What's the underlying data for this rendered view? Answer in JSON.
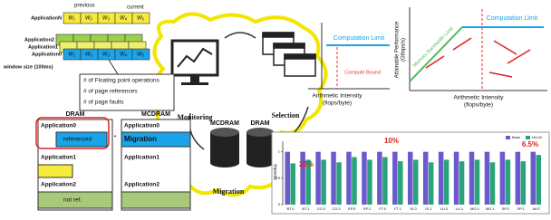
{
  "windows": {
    "previous": "previous",
    "current": "current",
    "apps": [
      "ApplicationN",
      "Application2",
      "Application1",
      "Application0"
    ],
    "labels": [
      "W₁",
      "W₂",
      "W₃",
      "W₄",
      "W₅"
    ],
    "window_size": "window size (100ms)"
  },
  "metrics": [
    "# of Floating point operations",
    "# of page references",
    "# of page faults"
  ],
  "stages": {
    "monitoring": "Monitoring",
    "selection": "Selection",
    "migration": "Migration"
  },
  "roofline_left": {
    "limit": "Computation Limit",
    "bound": "Compute Bound",
    "x_label": "Arithmetic Intensity",
    "x_unit": "(flops/byte)"
  },
  "roofline_right": {
    "limit": "Computation Limit",
    "memory_limit": "Memory Bandwidth Limit",
    "y_label": "Attainable Performance",
    "y_unit": "(Gflops/s)",
    "x_label": "Arithmetic Intensity",
    "x_unit": "(flops/byte)"
  },
  "memory": {
    "dram": "DRAM",
    "mcdram": "MCDRAM",
    "dram_rows": [
      "Application0",
      "referenced",
      "Application1",
      "Application2",
      "not ref."
    ],
    "mcdram_rows": [
      "Application0",
      "Migration",
      "Application1",
      "Application2"
    ]
  },
  "cylinders": {
    "mcdram": "MCDRAM",
    "dram": "DRAM"
  },
  "speedup_chart": {
    "type": "bar",
    "y_label": "Speedup",
    "categories": [
      "BT.0",
      "BT.1",
      "CG.0",
      "CG.1",
      "EP.0",
      "EP.1",
      "FT.0",
      "FT.1",
      "IS.0",
      "IS.1",
      "LU.0",
      "LU.1",
      "MG.0",
      "MG.1",
      "SP.0",
      "SP.1",
      "AVG"
    ],
    "series": [
      {
        "name": "Base",
        "color": "#6a5acd",
        "values": [
          1.0,
          1.0,
          1.0,
          1.0,
          1.0,
          1.0,
          1.0,
          1.0,
          1.0,
          1.0,
          1.0,
          1.0,
          1.0,
          1.0,
          1.0,
          1.0,
          1.0
        ]
      },
      {
        "name": "HLLM",
        "color": "#2aa37a",
        "values": [
          0.78,
          0.85,
          0.85,
          0.8,
          0.9,
          0.85,
          0.9,
          0.82,
          0.85,
          0.8,
          0.85,
          0.82,
          0.85,
          0.8,
          0.85,
          0.82,
          0.94
        ]
      }
    ],
    "ylim": [
      0,
      1.2
    ],
    "yticks": [
      0,
      0.5,
      1
    ],
    "annotations": [
      "22%",
      "10%",
      "6.5%"
    ]
  }
}
